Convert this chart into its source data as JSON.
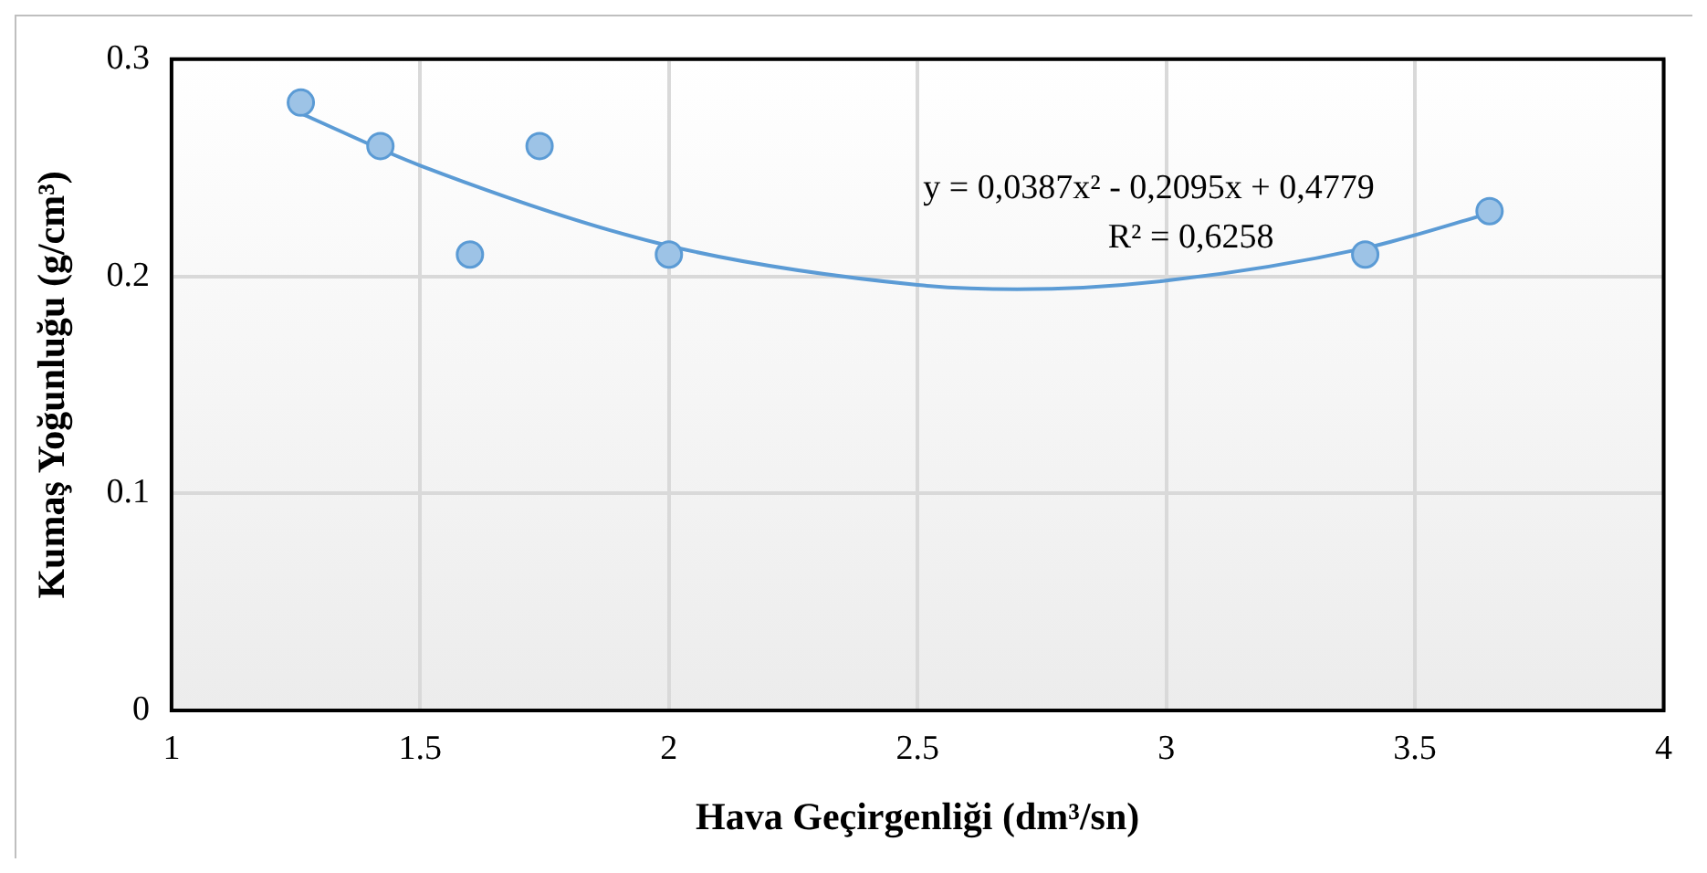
{
  "chart_data": {
    "type": "scatter",
    "xlabel": "Hava Geçirgenliği (dm³/sn)",
    "ylabel": "Kumaş Yoğunluğu (g/cm³)",
    "x": [
      1.26,
      1.42,
      1.6,
      1.74,
      2.0,
      3.4,
      3.65
    ],
    "series": [
      {
        "color": "#9dc3e6",
        "values": [
          0.28,
          0.26,
          0.21,
          0.26,
          0.21,
          0.21,
          0.23
        ]
      },
      {
        "type": "line",
        "color": "#5b9bd5",
        "marker": "none",
        "x": [
          1.26,
          1.5,
          2,
          2.5,
          2.7,
          3,
          3.4,
          3.65
        ],
        "values": [
          0.275,
          0.251,
          0.214,
          0.196,
          0.194,
          0.198,
          0.213,
          0.229
        ]
      }
    ],
    "xlim": [
      1,
      4
    ],
    "xticks": [
      1,
      1.5,
      2,
      2.5,
      3,
      3.5,
      4
    ],
    "ylim": [
      0,
      0.3
    ],
    "yticks": [
      0,
      0.1,
      0.2,
      0.3
    ],
    "grid": true,
    "legend": false,
    "marker": "circle",
    "annotations": [
      "y = 0,0387x² - 0,2095x + 0,4779",
      "R² = 0,6258"
    ]
  }
}
